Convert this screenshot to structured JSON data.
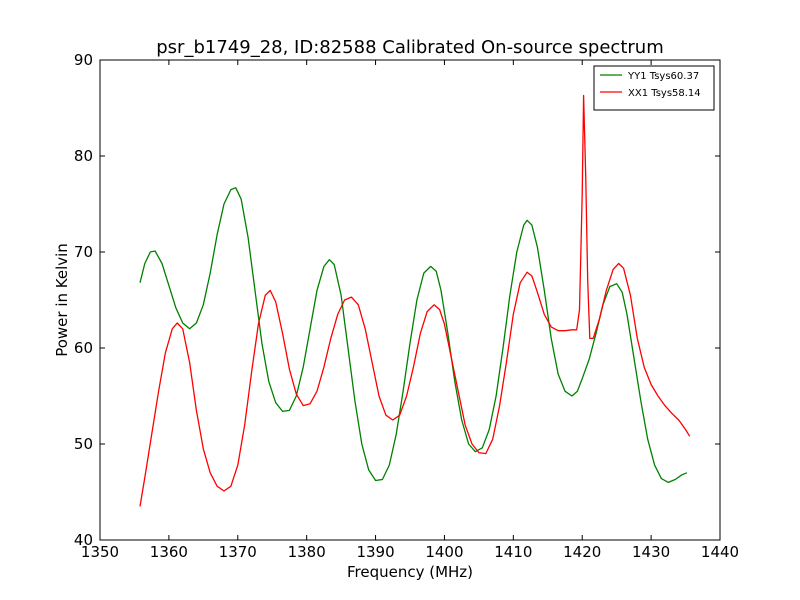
{
  "chart_data": {
    "type": "line",
    "title": "psr_b1749_28, ID:82588 Calibrated On-source spectrum",
    "xlabel": "Frequency (MHz)",
    "ylabel": "Power in Kelvin",
    "xlim": [
      1350,
      1440
    ],
    "ylim": [
      40,
      90
    ],
    "xticks": [
      1350,
      1360,
      1370,
      1380,
      1390,
      1400,
      1410,
      1420,
      1430,
      1440
    ],
    "yticks": [
      40,
      50,
      60,
      70,
      80,
      90
    ],
    "grid": false,
    "legend": "top-right",
    "series": [
      {
        "name": "YY1 Tsys60.37",
        "color": "#008000",
        "points": [
          [
            1355.8,
            66.8
          ],
          [
            1356.5,
            68.8
          ],
          [
            1357.3,
            70.0
          ],
          [
            1358.0,
            70.1
          ],
          [
            1359.0,
            68.8
          ],
          [
            1360.0,
            66.5
          ],
          [
            1361.0,
            64.2
          ],
          [
            1362.0,
            62.6
          ],
          [
            1363.0,
            62.0
          ],
          [
            1364.0,
            62.6
          ],
          [
            1365.0,
            64.5
          ],
          [
            1366.0,
            67.8
          ],
          [
            1367.0,
            71.8
          ],
          [
            1368.0,
            75.0
          ],
          [
            1369.0,
            76.5
          ],
          [
            1369.7,
            76.7
          ],
          [
            1370.5,
            75.5
          ],
          [
            1371.5,
            71.5
          ],
          [
            1372.5,
            66.0
          ],
          [
            1373.5,
            60.5
          ],
          [
            1374.5,
            56.5
          ],
          [
            1375.5,
            54.3
          ],
          [
            1376.5,
            53.4
          ],
          [
            1377.5,
            53.5
          ],
          [
            1378.5,
            55.0
          ],
          [
            1379.5,
            58.0
          ],
          [
            1380.5,
            62.0
          ],
          [
            1381.5,
            66.0
          ],
          [
            1382.5,
            68.5
          ],
          [
            1383.3,
            69.2
          ],
          [
            1384.0,
            68.7
          ],
          [
            1385.0,
            65.5
          ],
          [
            1386.0,
            60.0
          ],
          [
            1387.0,
            54.5
          ],
          [
            1388.0,
            50.0
          ],
          [
            1389.0,
            47.3
          ],
          [
            1390.0,
            46.2
          ],
          [
            1391.0,
            46.3
          ],
          [
            1392.0,
            47.8
          ],
          [
            1393.0,
            51.0
          ],
          [
            1394.0,
            55.5
          ],
          [
            1395.0,
            60.5
          ],
          [
            1396.0,
            65.0
          ],
          [
            1397.0,
            67.8
          ],
          [
            1398.0,
            68.5
          ],
          [
            1398.8,
            68.0
          ],
          [
            1399.5,
            66.0
          ],
          [
            1400.5,
            61.5
          ],
          [
            1401.5,
            56.5
          ],
          [
            1402.5,
            52.5
          ],
          [
            1403.5,
            50.0
          ],
          [
            1404.5,
            49.2
          ],
          [
            1405.5,
            49.6
          ],
          [
            1406.5,
            51.5
          ],
          [
            1407.5,
            55.0
          ],
          [
            1408.5,
            60.0
          ],
          [
            1409.5,
            65.5
          ],
          [
            1410.5,
            70.0
          ],
          [
            1411.5,
            72.8
          ],
          [
            1412.0,
            73.3
          ],
          [
            1412.7,
            72.8
          ],
          [
            1413.5,
            70.5
          ],
          [
            1414.5,
            66.0
          ],
          [
            1415.5,
            61.0
          ],
          [
            1416.5,
            57.3
          ],
          [
            1417.5,
            55.5
          ],
          [
            1418.5,
            55.0
          ],
          [
            1419.3,
            55.5
          ],
          [
            1420.0,
            56.8
          ],
          [
            1421.0,
            58.8
          ],
          [
            1422.0,
            61.5
          ],
          [
            1423.0,
            64.5
          ],
          [
            1424.0,
            66.4
          ],
          [
            1425.0,
            66.7
          ],
          [
            1425.8,
            65.8
          ],
          [
            1426.5,
            63.5
          ],
          [
            1427.5,
            59.0
          ],
          [
            1428.5,
            54.5
          ],
          [
            1429.5,
            50.5
          ],
          [
            1430.5,
            47.8
          ],
          [
            1431.5,
            46.4
          ],
          [
            1432.5,
            46.0
          ],
          [
            1433.5,
            46.3
          ],
          [
            1434.5,
            46.8
          ],
          [
            1435.2,
            47.0
          ]
        ]
      },
      {
        "name": "XX1 Tsys58.14",
        "color": "#ff0000",
        "points": [
          [
            1355.8,
            43.5
          ],
          [
            1356.5,
            46.5
          ],
          [
            1357.5,
            51.0
          ],
          [
            1358.5,
            55.5
          ],
          [
            1359.5,
            59.5
          ],
          [
            1360.5,
            62.0
          ],
          [
            1361.2,
            62.6
          ],
          [
            1362.0,
            62.0
          ],
          [
            1363.0,
            58.5
          ],
          [
            1364.0,
            53.5
          ],
          [
            1365.0,
            49.5
          ],
          [
            1366.0,
            47.0
          ],
          [
            1367.0,
            45.6
          ],
          [
            1368.0,
            45.1
          ],
          [
            1369.0,
            45.6
          ],
          [
            1370.0,
            47.8
          ],
          [
            1371.0,
            52.0
          ],
          [
            1372.0,
            57.5
          ],
          [
            1373.0,
            62.5
          ],
          [
            1374.0,
            65.5
          ],
          [
            1374.7,
            66.0
          ],
          [
            1375.5,
            64.8
          ],
          [
            1376.5,
            61.5
          ],
          [
            1377.5,
            57.8
          ],
          [
            1378.5,
            55.2
          ],
          [
            1379.5,
            54.0
          ],
          [
            1380.5,
            54.2
          ],
          [
            1381.5,
            55.5
          ],
          [
            1382.5,
            58.0
          ],
          [
            1383.5,
            61.0
          ],
          [
            1384.5,
            63.5
          ],
          [
            1385.5,
            65.0
          ],
          [
            1386.5,
            65.3
          ],
          [
            1387.5,
            64.5
          ],
          [
            1388.5,
            62.0
          ],
          [
            1389.5,
            58.5
          ],
          [
            1390.5,
            55.0
          ],
          [
            1391.5,
            53.0
          ],
          [
            1392.5,
            52.5
          ],
          [
            1393.5,
            53.0
          ],
          [
            1394.5,
            55.0
          ],
          [
            1395.5,
            58.0
          ],
          [
            1396.5,
            61.5
          ],
          [
            1397.5,
            63.8
          ],
          [
            1398.5,
            64.5
          ],
          [
            1399.3,
            64.0
          ],
          [
            1400.0,
            62.5
          ],
          [
            1401.0,
            59.0
          ],
          [
            1402.0,
            55.5
          ],
          [
            1403.0,
            52.0
          ],
          [
            1404.0,
            50.0
          ],
          [
            1405.0,
            49.1
          ],
          [
            1406.0,
            49.0
          ],
          [
            1407.0,
            50.5
          ],
          [
            1408.0,
            54.0
          ],
          [
            1409.0,
            58.5
          ],
          [
            1410.0,
            63.5
          ],
          [
            1411.0,
            66.8
          ],
          [
            1412.0,
            67.9
          ],
          [
            1412.7,
            67.5
          ],
          [
            1413.5,
            65.8
          ],
          [
            1414.5,
            63.5
          ],
          [
            1415.5,
            62.2
          ],
          [
            1416.5,
            61.8
          ],
          [
            1417.5,
            61.8
          ],
          [
            1418.5,
            61.9
          ],
          [
            1419.2,
            61.9
          ],
          [
            1419.6,
            64.0
          ],
          [
            1420.0,
            76.0
          ],
          [
            1420.2,
            86.3
          ],
          [
            1420.5,
            78.0
          ],
          [
            1420.8,
            67.0
          ],
          [
            1421.1,
            61.0
          ],
          [
            1421.6,
            61.0
          ],
          [
            1422.5,
            63.0
          ],
          [
            1423.5,
            66.0
          ],
          [
            1424.5,
            68.2
          ],
          [
            1425.3,
            68.8
          ],
          [
            1426.0,
            68.3
          ],
          [
            1427.0,
            65.5
          ],
          [
            1428.0,
            61.0
          ],
          [
            1429.0,
            58.0
          ],
          [
            1430.0,
            56.2
          ],
          [
            1431.0,
            55.0
          ],
          [
            1432.0,
            54.0
          ],
          [
            1433.0,
            53.2
          ],
          [
            1434.0,
            52.5
          ],
          [
            1435.0,
            51.5
          ],
          [
            1435.6,
            50.8
          ]
        ]
      }
    ]
  }
}
